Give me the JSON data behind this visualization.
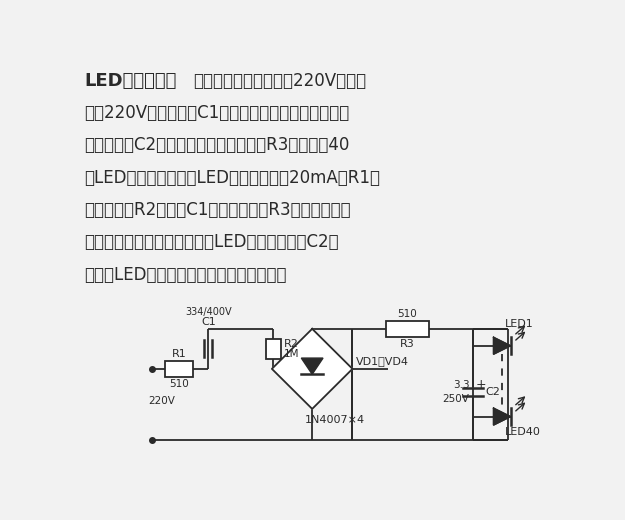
{
  "bg_color": "#f2f2f2",
  "line_color": "#2a2a2a",
  "text_color": "#2a2a2a",
  "title": "LED灯杯电路",
  "colon": "：",
  "line1_suffix": "如下图所示，该灯使用220V电源供",
  "body_lines": [
    "电，220V交流电经过C1降压电容降压后，再经过全桥",
    "整流，通过C2滤波，最后经过限流电阳R3给串联的40",
    "个LED提供恒流电源。LED的额定电流为20mA，R1是",
    "保护电阳，R2是电容C1的释放电阳，R3是限流电阳，",
    "以防止电压升高、温度升高、LED的电流增大，C2用",
    "来保护LED免受开灯时的冲击电流的损害。"
  ],
  "lw": 1.3,
  "fs_title": 13,
  "fs_body": 12,
  "fs_label": 8,
  "fs_sub": 7.5
}
